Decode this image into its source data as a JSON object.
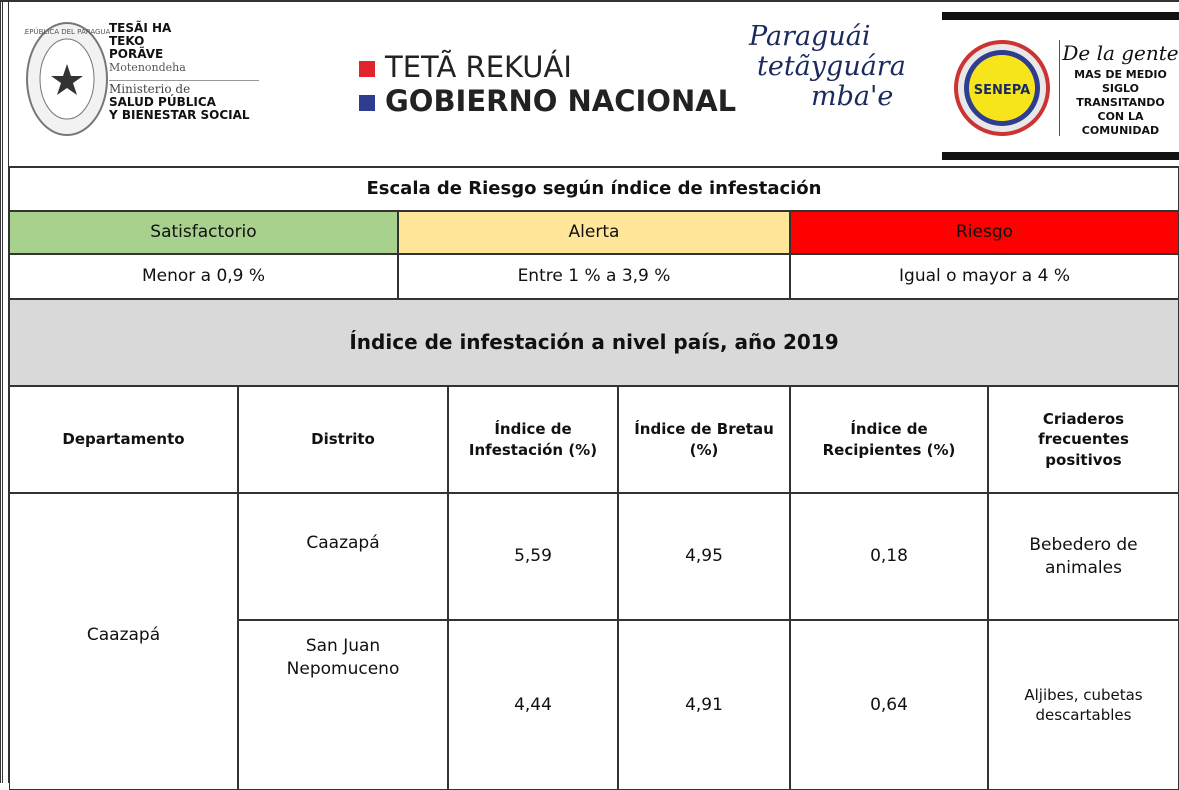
{
  "header": {
    "ministry": {
      "seal": "REPÚBLICA DEL PARAGUAY",
      "slogan": "TESÃI HA TEKO PORÃVE",
      "guarani": "Motenondeha",
      "line1": "Ministerio de",
      "line2": "SALUD PÚBLICA",
      "line3": "Y BIENESTAR SOCIAL"
    },
    "government": {
      "line1": "TETÃ REKUÁI",
      "line2": "GOBIERNO NACIONAL"
    },
    "motto": {
      "line1": "Paraguái",
      "line2": "tetãyguára",
      "line3": "mba'e"
    },
    "senepa": {
      "logo": "SENEPA",
      "tag": "De la gente",
      "line1": "MAS DE MEDIO",
      "line2": "SIGLO TRANSITANDO",
      "line3": "CON LA COMUNIDAD"
    }
  },
  "risk_scale": {
    "title": "Escala de Riesgo según índice de infestación",
    "levels": [
      {
        "name": "Satisfactorio",
        "range": "Menor a 0,9 %",
        "color": "#a9d18e"
      },
      {
        "name": "Alerta",
        "range": "Entre 1 % a 3,9 %",
        "color": "#ffe699"
      },
      {
        "name": "Riesgo",
        "range": "Igual o mayor a 4 %",
        "color": "#ff0000"
      }
    ]
  },
  "table": {
    "title": "Índice de infestación a nivel país, año 2019",
    "columns": [
      "Departamento",
      "Distrito",
      "Índice de Infestación (%)",
      "Índice de Bretau (%)",
      "Índice de Recipientes (%)",
      "Criaderos frecuentes positivos"
    ],
    "department": "Caazapá",
    "rows": [
      [
        "Caazapá",
        "5,59",
        "4,95",
        "0,18",
        "Bebedero de animales"
      ],
      [
        "San Juan Nepomuceno",
        "4,44",
        "4,91",
        "0,64",
        "Aljibes, cubetas descartables"
      ]
    ]
  }
}
